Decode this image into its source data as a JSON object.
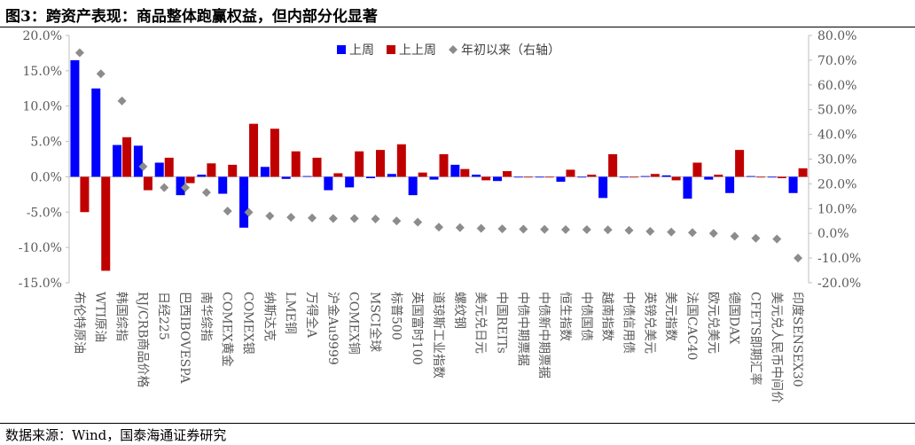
{
  "title": "图3：跨资产表现：商品整体跑赢权益，但内部分化显著",
  "source": "数据来源：Wind，国泰海通证券研究",
  "chart_data": {
    "type": "bar",
    "categories": [
      "布伦特原油",
      "WTI原油",
      "韩国综指",
      "RJ/CRB商品价格",
      "日经225",
      "巴西IBOVESPA",
      "南华综指",
      "COMEX黄金",
      "COMEX银",
      "纳斯达克",
      "LME铜",
      "万得全A",
      "沪金Au9999",
      "COMEX铜",
      "MSCI全球",
      "标普500",
      "英国富时100",
      "道琼斯工业指数",
      "螺纹钢",
      "美元兑日元",
      "中国REITs",
      "中债中期票据",
      "中债新中期票据",
      "恒生指数",
      "中债国债",
      "越南指数",
      "中债信用债",
      "英镑兑美元",
      "美元指数",
      "法国CAC40",
      "欧元兑美元",
      "德国DAX",
      "CFETS即期汇率",
      "美元兑人民币中间价",
      "印度SENSEX30"
    ],
    "series": [
      {
        "name": "上周",
        "color": "#0000ff",
        "axis": "left",
        "values": [
          16.5,
          12.5,
          4.5,
          4.4,
          2.0,
          -2.6,
          0.3,
          -2.4,
          -7.2,
          1.4,
          -0.3,
          0.1,
          -1.9,
          -1.5,
          -0.2,
          0.4,
          -2.6,
          -0.4,
          1.7,
          0.3,
          -0.6,
          -0.1,
          -0.1,
          -0.7,
          -0.1,
          -3.0,
          -0.1,
          0.1,
          0.2,
          -3.1,
          -0.4,
          -2.3,
          0.1,
          -0.1,
          -2.3
        ]
      },
      {
        "name": "上上周",
        "color": "#c00000",
        "axis": "left",
        "values": [
          -5.0,
          -13.3,
          5.6,
          -1.9,
          2.7,
          -0.9,
          1.9,
          1.7,
          7.5,
          6.8,
          3.6,
          2.7,
          0.5,
          3.6,
          3.8,
          4.6,
          0.6,
          3.2,
          1.1,
          -0.5,
          0.8,
          -0.1,
          -0.1,
          1.0,
          0.3,
          3.2,
          -0.1,
          0.4,
          -0.5,
          2.0,
          0.3,
          3.8,
          -0.1,
          -0.2,
          1.2
        ]
      },
      {
        "name": "年初以来（右轴）",
        "color": "#8c8c8c",
        "axis": "right",
        "marker": "diamond",
        "values": [
          73.0,
          64.5,
          53.5,
          27.0,
          18.5,
          18.5,
          16.5,
          9.0,
          8.5,
          7.0,
          6.5,
          6.2,
          6.0,
          6.0,
          5.8,
          5.0,
          4.5,
          2.5,
          2.3,
          2.0,
          1.8,
          1.7,
          1.6,
          1.5,
          1.5,
          1.4,
          1.2,
          0.8,
          0.5,
          0.3,
          0.0,
          -1.2,
          -2.0,
          -2.3,
          -10.0
        ]
      }
    ],
    "y_left": {
      "min": -15.0,
      "max": 20.0,
      "step": 5.0,
      "format": "percent1"
    },
    "y_right": {
      "min": -20.0,
      "max": 80.0,
      "step": 10.0,
      "format": "percent1"
    },
    "legend_position": "top-center",
    "grid": false
  }
}
